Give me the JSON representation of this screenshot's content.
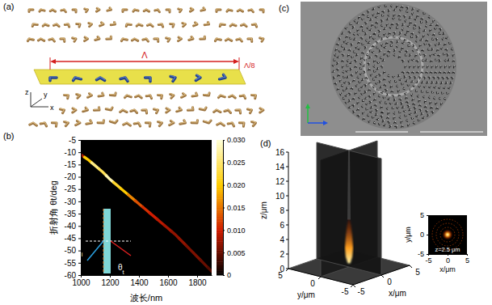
{
  "images": [
    {
      "panel": "(a)",
      "period": "Λ",
      "shift": "Λ/8",
      "axes": [
        "z",
        "y",
        "x"
      ]
    },
    {
      "panel": "(c)"
    }
  ],
  "chart_data": [
    {
      "panel": "(b)",
      "type": "heatmap",
      "x_label": "波长/nm",
      "y_label": "折射角 θt/deg",
      "x": [
        1000,
        1050,
        1100,
        1150,
        1200,
        1250,
        1300,
        1350,
        1400,
        1450,
        1500,
        1550,
        1600,
        1650,
        1700,
        1750,
        1800,
        1850,
        1900
      ],
      "values": [
        -11,
        -13,
        -15.5,
        -18,
        -21,
        -23.5,
        -26,
        -28.5,
        -31,
        -33.5,
        -36,
        -38.5,
        -41,
        -43.5,
        -46.5,
        -49.5,
        -52.5,
        -55.5,
        -58.5
      ],
      "intensity": [
        0.008,
        0.02,
        0.026,
        0.024,
        0.028,
        0.022,
        0.02,
        0.016,
        0.013,
        0.011,
        0.01,
        0.009,
        0.008,
        0.007,
        0.007,
        0.006,
        0.006,
        0.005,
        0.004
      ],
      "xlim": [
        1000,
        1900
      ],
      "xticks": [
        1000,
        1200,
        1400,
        1600,
        1800
      ],
      "ylim": [
        -60,
        -5
      ],
      "yticks": [
        -5,
        -10,
        -15,
        -20,
        -25,
        -30,
        -35,
        -40,
        -45,
        -50,
        -55,
        -60
      ],
      "colorbar": {
        "range": [
          0,
          0.03
        ],
        "ticks": [
          0,
          0.005,
          {
            "value": 0.01,
            "label": "0.010"
          },
          0.015,
          {
            "value": 0.02,
            "label": "0.020"
          },
          0.025,
          {
            "value": 0.03,
            "label": "0.030"
          }
        ]
      },
      "inset_labels": [
        "θi",
        "θt"
      ]
    },
    {
      "panel": "(d)",
      "type": "surface3d",
      "x_label": "x/μm",
      "y_label": "y/μm",
      "z_label": "z/μm",
      "xlim": [
        -5,
        5
      ],
      "xticks": [
        -5,
        0,
        5
      ],
      "ylim": [
        -5,
        5
      ],
      "yticks": [
        5,
        0,
        -5
      ],
      "zlim": [
        0,
        16
      ],
      "zticks": [
        0,
        2,
        4,
        6,
        8,
        10,
        12,
        14,
        16
      ],
      "focus_z": [
        0.5,
        6.5
      ]
    },
    {
      "type": "heatmap",
      "x_label": "x/μm",
      "y_label": "y/μm",
      "xlim": [
        -5,
        5
      ],
      "xticks": [
        -5,
        0,
        5
      ],
      "ylim": [
        -5,
        5
      ],
      "yticks": [
        -5,
        0,
        5
      ],
      "annotation": "z=2.5 μm",
      "spot_center": [
        0,
        0
      ]
    }
  ]
}
